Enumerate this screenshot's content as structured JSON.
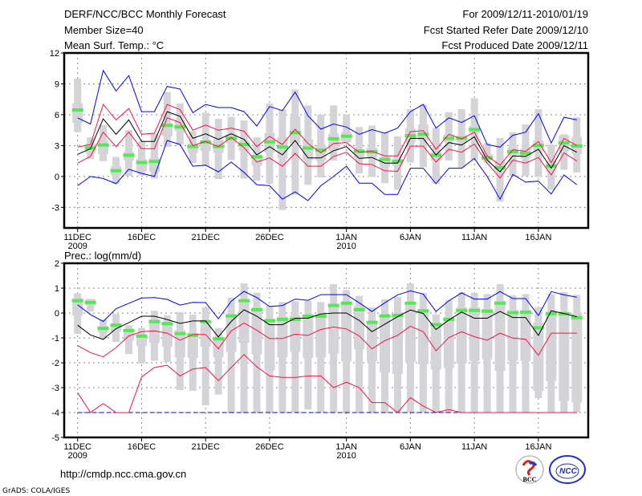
{
  "header": {
    "title": "DERF/NCC/BCC Monthly Forecast",
    "member_size": "Member Size=40",
    "period": "For 2009/12/11-2010/01/19",
    "started": "Fcst Started Refer Date 2009/12/10",
    "produced": "Fcst Produced Date 2009/12/11"
  },
  "footer": {
    "url": "http://cmdp.ncc.cma.gov.cn",
    "credit": "GrADS: COLA/IGES",
    "logo_left": "BCC",
    "logo_right": "NCC"
  },
  "colors": {
    "max_min": "#0000ff",
    "quartile": "#ff1040",
    "mean": "#000000",
    "box": "#d3d3d8",
    "obs": "#55e855"
  },
  "chart_data": [
    {
      "type": "line",
      "title": "Mean Surf. Temp.: °C",
      "x_start": "2009/12/11",
      "n_days": 40,
      "x_ticks": [
        {
          "day": 0,
          "label": "11DEC",
          "sub": "2009"
        },
        {
          "day": 5,
          "label": "16DEC"
        },
        {
          "day": 10,
          "label": "21DEC"
        },
        {
          "day": 15,
          "label": "26DEC"
        },
        {
          "day": 21,
          "label": "1JAN",
          "sub": "2010"
        },
        {
          "day": 26,
          "label": "6JAN"
        },
        {
          "day": 31,
          "label": "11JAN"
        },
        {
          "day": 36,
          "label": "16JAN"
        }
      ],
      "ylim": [
        -5,
        12
      ],
      "y_ticks": [
        12,
        9,
        6,
        3,
        0,
        -3
      ],
      "grid": true,
      "series": [
        {
          "name": "max",
          "color": "#0000ff",
          "values": [
            5.7,
            5.1,
            10.3,
            8.3,
            9.8,
            6.3,
            6.3,
            8.75,
            8.5,
            6.2,
            7.0,
            6.7,
            6.7,
            6.3,
            4.9,
            6.8,
            6.4,
            8.2,
            5.9,
            4.6,
            5.1,
            4.8,
            4.1,
            4.55,
            4.2,
            4.7,
            6.3,
            7.0,
            4.7,
            5.7,
            5.25,
            5.9,
            3.1,
            2.85,
            4.0,
            4.3,
            6.1,
            3.25,
            5.75,
            5.5
          ]
        },
        {
          "name": "upper",
          "color": "#ff1040",
          "values": [
            2.86,
            3.1,
            7.0,
            5.5,
            6.6,
            4.1,
            4.2,
            7.0,
            6.5,
            4.5,
            5.0,
            4.5,
            4.7,
            4.4,
            2.9,
            3.9,
            3.1,
            4.6,
            3.2,
            2.3,
            3.2,
            3.3,
            2.35,
            2.45,
            2.0,
            2.0,
            4.35,
            4.45,
            2.65,
            4.1,
            3.65,
            4.3,
            2.0,
            1.1,
            2.6,
            2.45,
            3.4,
            1.35,
            3.7,
            3.0
          ]
        },
        {
          "name": "mean",
          "color": "#000000",
          "values": [
            2.15,
            2.7,
            5.6,
            4.1,
            5.5,
            3.4,
            3.4,
            6.3,
            5.85,
            3.7,
            4.15,
            3.6,
            4.15,
            3.6,
            2.1,
            2.9,
            2.1,
            3.5,
            1.8,
            1.8,
            2.5,
            2.9,
            1.75,
            1.85,
            1.3,
            1.3,
            3.7,
            3.7,
            2.1,
            3.3,
            3.05,
            3.85,
            1.6,
            0.45,
            2.0,
            1.95,
            2.65,
            0.8,
            3.0,
            2.35
          ]
        },
        {
          "name": "lower",
          "color": "#ff1040",
          "values": [
            1.3,
            1.95,
            4.3,
            2.9,
            4.3,
            2.7,
            2.7,
            5.7,
            5.25,
            3.0,
            3.4,
            2.9,
            3.8,
            2.8,
            1.4,
            1.8,
            1.0,
            2.25,
            1.0,
            1.0,
            1.95,
            2.35,
            1.25,
            1.15,
            0.55,
            0.5,
            2.95,
            2.95,
            1.4,
            2.65,
            2.35,
            3.15,
            1.3,
            -0.15,
            1.6,
            1.3,
            1.85,
            0.15,
            2.3,
            1.5
          ]
        },
        {
          "name": "min",
          "color": "#0000ff",
          "values": [
            -0.9,
            0,
            -0.2,
            -0.7,
            0.7,
            0.3,
            0,
            3.5,
            3.1,
            1.0,
            1.1,
            0.45,
            1.4,
            0.4,
            -0.8,
            -0.9,
            -2.2,
            -1.5,
            -2.35,
            -0.9,
            0,
            1.0,
            -0.65,
            -0.65,
            -1.75,
            -1.75,
            0.8,
            0.8,
            -0.7,
            0.8,
            0.8,
            1.75,
            0,
            -2.2,
            0.2,
            -0.55,
            -0.45,
            -1.7,
            0.15,
            -0.8
          ]
        }
      ],
      "boxes": [
        [
          4.3,
          5.2,
          7.1,
          9.5
        ],
        [
          1.7,
          2.3,
          3.2,
          3.8
        ],
        [
          1.5,
          2.2,
          3.5,
          5.0
        ],
        [
          -0.7,
          0.1,
          1.0,
          1.9
        ],
        [
          0.05,
          1.55,
          2.4,
          4.5
        ],
        [
          0.1,
          0.5,
          1.7,
          3.4
        ],
        [
          -0.2,
          0.45,
          1.8,
          4.15
        ],
        [
          2.9,
          3.9,
          5.2,
          8.2
        ],
        [
          3.1,
          4.4,
          5.5,
          7.1
        ],
        [
          1.3,
          2.3,
          3.2,
          4.4
        ],
        [
          1.0,
          2.5,
          3.5,
          6.2
        ],
        [
          -0.25,
          2.3,
          3.6,
          5.6
        ],
        [
          1.6,
          3.25,
          4.15,
          5.8
        ],
        [
          -0.2,
          2.5,
          3.5,
          5.45
        ],
        [
          -0.4,
          1.05,
          2.1,
          3.8
        ],
        [
          -0.7,
          2.35,
          4.2,
          7.1
        ],
        [
          -3.25,
          1.8,
          3.8,
          6.5
        ],
        [
          -1.75,
          3.2,
          5.85,
          8.45
        ],
        [
          -0.8,
          1.6,
          3.6,
          6.9
        ],
        [
          -0.1,
          1.55,
          3.1,
          6.0
        ],
        [
          1.55,
          2.5,
          4.15,
          6.9
        ],
        [
          3.25,
          3.4,
          4.3,
          6.0
        ],
        [
          0.3,
          1.8,
          2.6,
          4.8
        ],
        [
          -0.05,
          1.8,
          2.8,
          4.95
        ],
        [
          -0.65,
          0.9,
          1.85,
          4.3
        ],
        [
          -1.3,
          1.05,
          1.7,
          3.9
        ],
        [
          1.35,
          3.3,
          4.7,
          6.55
        ],
        [
          0.9,
          3.5,
          5.05,
          7.0
        ],
        [
          -0.7,
          1.55,
          2.35,
          4.7
        ],
        [
          1.55,
          3.4,
          4.1,
          6.25
        ],
        [
          0.85,
          3.3,
          4.0,
          6.55
        ],
        [
          1.6,
          4.2,
          4.9,
          7.6
        ],
        [
          1.3,
          1.6,
          2.2,
          3.25
        ],
        [
          -2.45,
          0.5,
          1.55,
          3.75
        ],
        [
          0.05,
          2.1,
          2.85,
          4.3
        ],
        [
          0.05,
          1.75,
          2.7,
          5.05
        ],
        [
          -0.05,
          2.45,
          3.5,
          6.55
        ],
        [
          -1.3,
          0.45,
          1.45,
          3.1
        ],
        [
          0.65,
          2.45,
          4.0,
          4.1
        ],
        [
          0.4,
          2.2,
          3.85,
          5.75
        ]
      ],
      "observed": [
        6.5,
        2.8,
        3.1,
        0.6,
        2.1,
        1.4,
        1.5,
        5.0,
        4.85,
        2.95,
        3.4,
        2.95,
        3.75,
        3.15,
        1.95,
        3.4,
        2.9,
        4.3,
        2.8,
        2.6,
        3.7,
        3.95,
        2.5,
        2.45,
        1.7,
        1.5,
        4.0,
        4.15,
        2.1,
        3.75,
        3.75,
        4.6,
        1.85,
        0.9,
        2.45,
        2.3,
        3.05,
        1.05,
        3.3,
        3.0
      ]
    },
    {
      "type": "line",
      "title": "Prec.: log(mm/d)",
      "x_start": "2009/12/11",
      "n_days": 40,
      "x_ticks": [
        {
          "day": 0,
          "label": "11DEC",
          "sub": "2009"
        },
        {
          "day": 5,
          "label": "16DEC"
        },
        {
          "day": 10,
          "label": "21DEC"
        },
        {
          "day": 15,
          "label": "26DEC"
        },
        {
          "day": 21,
          "label": "1JAN",
          "sub": "2010"
        },
        {
          "day": 26,
          "label": "6JAN"
        },
        {
          "day": 31,
          "label": "11JAN"
        },
        {
          "day": 36,
          "label": "16JAN"
        }
      ],
      "ylim": [
        -5,
        2
      ],
      "y_ticks": [
        2,
        1,
        0,
        -1,
        -2,
        -3,
        -4,
        -5
      ],
      "grid": true,
      "series": [
        {
          "name": "max",
          "color": "#0000ff",
          "values": [
            0.33,
            -0.06,
            -0.34,
            0.17,
            0.39,
            0.6,
            0.62,
            0.55,
            0.32,
            0.43,
            0.42,
            -0.23,
            0.47,
            0.87,
            0.62,
            0.26,
            0.3,
            0.56,
            0.51,
            0.74,
            0.74,
            0.74,
            0.41,
            0.06,
            0.41,
            0.73,
            0.89,
            0.76,
            0.06,
            0.49,
            0.81,
            0.56,
            0.56,
            0.86,
            0.58,
            0.58,
            -0.1,
            0.86,
            0.73,
            0.64
          ]
        },
        {
          "name": "upper",
          "color": "#ff1040",
          "values": [
            -1.31,
            -1.59,
            -1.76,
            -1.39,
            -0.92,
            -0.75,
            -0.72,
            -0.81,
            -1.09,
            -0.86,
            -0.86,
            -1.44,
            -0.72,
            -0.4,
            -0.69,
            -1.03,
            -1.03,
            -0.85,
            -0.9,
            -0.66,
            -0.56,
            -0.64,
            -0.92,
            -1.44,
            -1.11,
            -0.9,
            -0.53,
            -0.75,
            -1.52,
            -0.99,
            -0.75,
            -0.95,
            -1.09,
            -0.81,
            -1.01,
            -1.05,
            -1.7,
            -0.81,
            -0.81,
            -0.81
          ]
        },
        {
          "name": "mean",
          "color": "#000000",
          "values": [
            -0.49,
            -0.88,
            -1.06,
            -0.63,
            -0.39,
            -0.13,
            -0.13,
            -0.26,
            -0.42,
            -0.32,
            -0.32,
            -0.96,
            -0.34,
            0.13,
            -0.13,
            -0.47,
            -0.47,
            -0.21,
            -0.21,
            -0.04,
            0,
            0,
            -0.3,
            -0.75,
            -0.45,
            -0.15,
            0.12,
            -0.02,
            -0.66,
            -0.28,
            0.04,
            -0.21,
            -0.21,
            0.06,
            -0.18,
            -0.18,
            -0.9,
            0.09,
            -0.02,
            -0.15
          ]
        },
        {
          "name": "min",
          "color": "#0000ff",
          "dashed": true,
          "values": [
            -4,
            -4,
            -4,
            -4,
            -4,
            -4,
            -4,
            -4,
            -4,
            -4,
            -4,
            -4,
            -4,
            -4,
            -4,
            -4,
            -4,
            -4,
            -4,
            -4,
            -4,
            -4,
            -4,
            -4,
            -4,
            -4,
            -4,
            -4,
            -4,
            -4,
            -4,
            -4,
            -4,
            -4,
            -4,
            -4,
            -4,
            -4,
            -4,
            -4
          ]
        },
        {
          "name": "lower",
          "color": "#ff1040",
          "values": [
            -3.2,
            -4,
            -3.64,
            -4,
            -4,
            -2.57,
            -2.19,
            -2.1,
            -2.53,
            -2.25,
            -2.19,
            -2.72,
            -2.19,
            -1.67,
            -2.16,
            -2.53,
            -2.59,
            -2.59,
            -2.53,
            -2.53,
            -3.0,
            -2.78,
            -3.0,
            -3.6,
            -3.6,
            -4,
            -3.4,
            -3.74,
            -4,
            -3.88,
            -4,
            -4,
            -4,
            -4,
            -4,
            -4,
            -4,
            -4,
            -4,
            -4
          ]
        }
      ],
      "boxes": [
        [
          -0.85,
          -0.1,
          0.6,
          0.79
        ],
        [
          0.06,
          0.33,
          0.55,
          0.57
        ],
        [
          -1.03,
          -0.79,
          -0.53,
          -0.26
        ],
        [
          -1.17,
          -0.76,
          -0.42,
          -0.04
        ],
        [
          -1.65,
          -1.11,
          -0.63,
          -0.49
        ],
        [
          -2.03,
          -1.33,
          -0.85,
          -0.6
        ],
        [
          -1.92,
          -1.2,
          -0.26,
          0.09
        ],
        [
          -1.97,
          -1.35,
          -0.36,
          -0.1
        ],
        [
          -3.1,
          -1.78,
          -0.69,
          0.04
        ],
        [
          -3.13,
          -1.81,
          -0.79,
          -0.06
        ],
        [
          -3.71,
          -1.35,
          -0.47,
          0.23
        ],
        [
          -3.28,
          -1.78,
          -0.99,
          -0.6
        ],
        [
          -3.99,
          -1.56,
          -0.1,
          0.62
        ],
        [
          -3.99,
          -1.2,
          0.55,
          1.19
        ],
        [
          -3.99,
          -1.67,
          0.23,
          0.81
        ],
        [
          -3.99,
          -2.32,
          -0.31,
          0.28
        ],
        [
          -3.99,
          -1.78,
          -0.15,
          0.44
        ],
        [
          -3.99,
          -1.56,
          -0.1,
          0.47
        ],
        [
          -3.88,
          -1.81,
          -0.15,
          0.49
        ],
        [
          -3.99,
          -1.78,
          -0.15,
          0.44
        ],
        [
          -3.99,
          -1.63,
          0.28,
          1.16
        ],
        [
          -3.99,
          -1.95,
          0.47,
          0.92
        ],
        [
          -3.99,
          -1.46,
          0.28,
          0.69
        ],
        [
          -3.99,
          -1.95,
          -0.31,
          0.23
        ],
        [
          -3.99,
          -2.38,
          -0.06,
          0.55
        ],
        [
          -3.99,
          -2.45,
          -0.06,
          0.65
        ],
        [
          -3.99,
          -1.97,
          0.44,
          1.19
        ],
        [
          -3.99,
          -2.06,
          0.17,
          0.81
        ],
        [
          -3.99,
          -2.27,
          -0.47,
          -0.06
        ],
        [
          -3.99,
          -2.21,
          -0.15,
          0.51
        ],
        [
          -3.99,
          -2.03,
          0.23,
          0.84
        ],
        [
          -3.99,
          -1.92,
          0.23,
          0.81
        ],
        [
          -3.99,
          -1.86,
          0.17,
          0.76
        ],
        [
          -3.99,
          -2.32,
          0.49,
          1.16
        ],
        [
          -3.99,
          -1.92,
          0.12,
          0.71
        ],
        [
          -3.99,
          -1.92,
          0.12,
          0.76
        ],
        [
          -3.42,
          -3.13,
          -0.39,
          0.23
        ],
        [
          -3.99,
          -2.74,
          0.01,
          0.76
        ],
        [
          -3.99,
          -3.53,
          0.01,
          0.84
        ],
        [
          -3.99,
          -3.6,
          -0.02,
          0.73
        ]
      ],
      "observed": [
        0.51,
        0.44,
        -0.6,
        -0.47,
        -0.69,
        -0.91,
        -0.33,
        -0.41,
        -0.81,
        -0.88,
        -0.33,
        -1.02,
        -0.1,
        0.51,
        0.15,
        -0.29,
        -0.24,
        -0.24,
        -0.11,
        -0.11,
        0.32,
        0.41,
        0.15,
        -0.36,
        -0.1,
        -0.08,
        0.41,
        0.1,
        -0.45,
        -0.24,
        0.12,
        0.12,
        0.09,
        0.41,
        0.03,
        0.05,
        -0.58,
        -0.01,
        -0.01,
        -0.17
      ]
    }
  ]
}
